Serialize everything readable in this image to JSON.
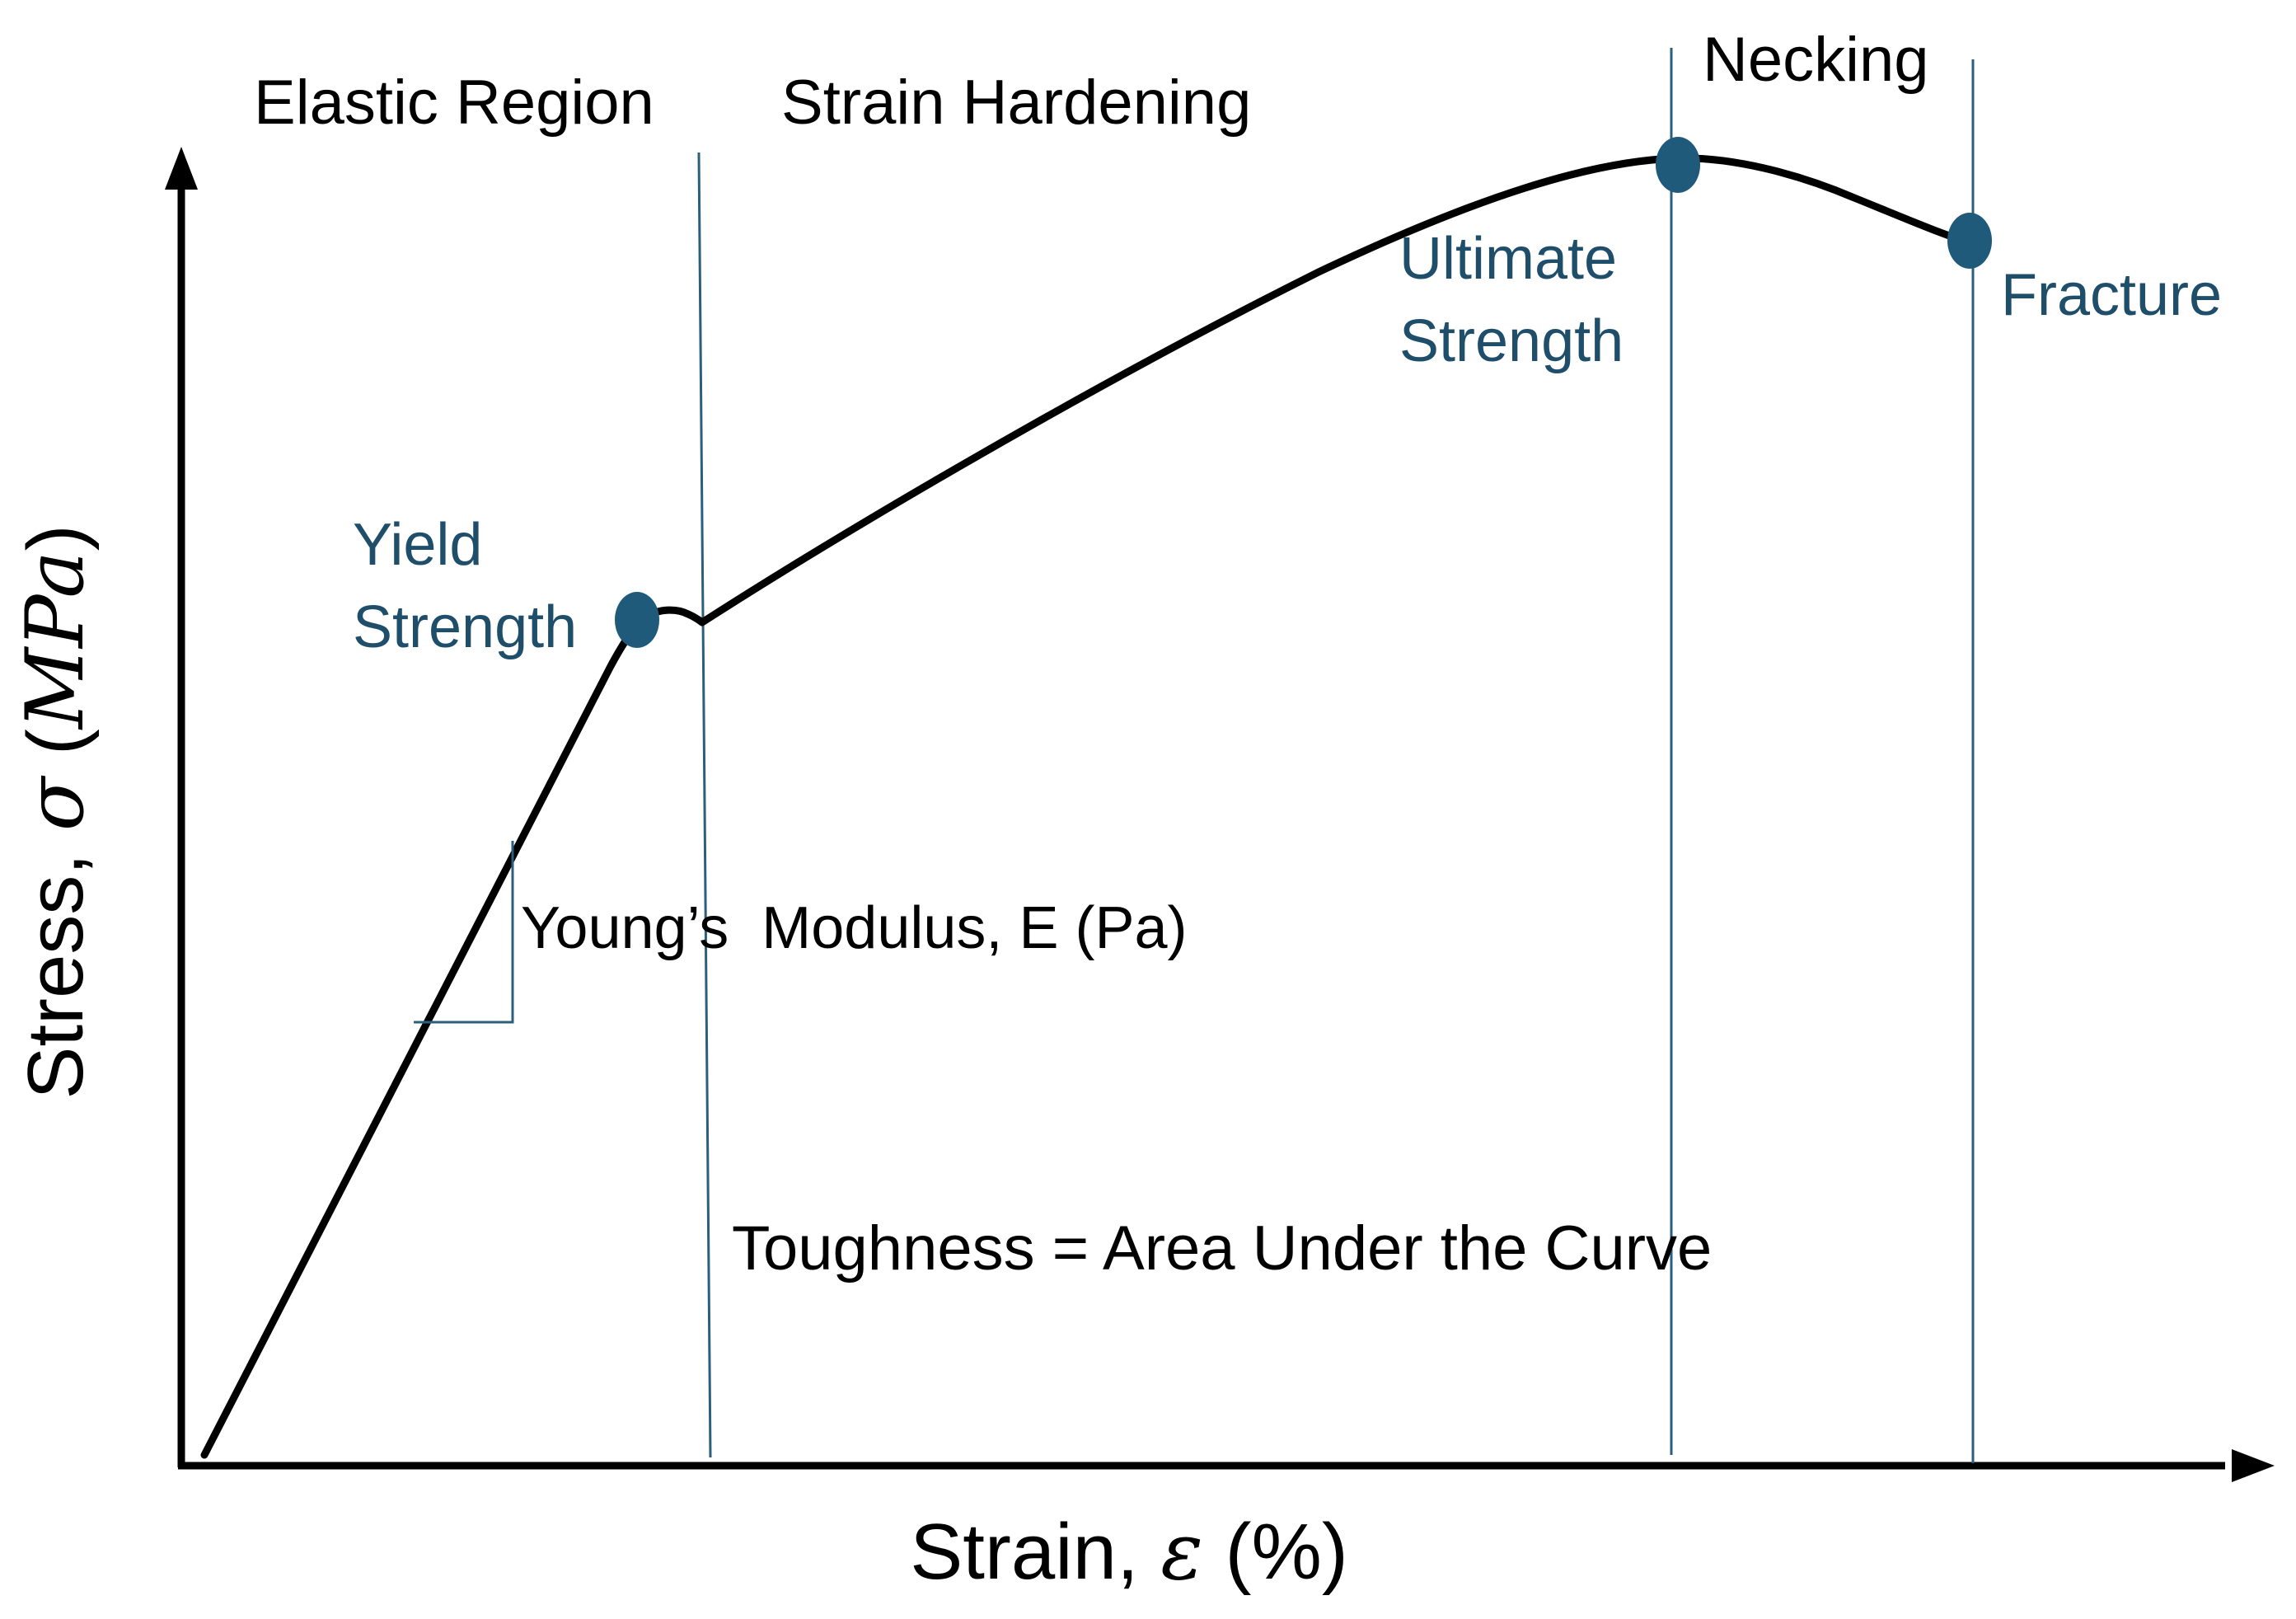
{
  "y_axis": {
    "label": "Stress, ",
    "symbol": "σ",
    "unit_open": " (",
    "unit": "MPa",
    "unit_close": ")"
  },
  "x_axis": {
    "label": "Strain, ",
    "symbol": "ε",
    "unit": " (%)"
  },
  "regions": {
    "elastic": "Elastic Region",
    "hardening": "Strain Hardening",
    "necking": "Necking"
  },
  "points": {
    "yield": {
      "line1": "Yield",
      "line2": "Strength"
    },
    "ultimate": {
      "line1": "Ultimate",
      "line2": "Strength"
    },
    "fracture": {
      "label": "Fracture"
    }
  },
  "modulus_label": "Young’s  Modulus, E (Pa)",
  "toughness_label": "Toughness = Area Under the Curve",
  "colors": {
    "curve": "#000000",
    "axis": "#000000",
    "marker": "#1f5a7a",
    "annotation": "#1f4e6b",
    "divider": "#2c5f7c"
  }
}
